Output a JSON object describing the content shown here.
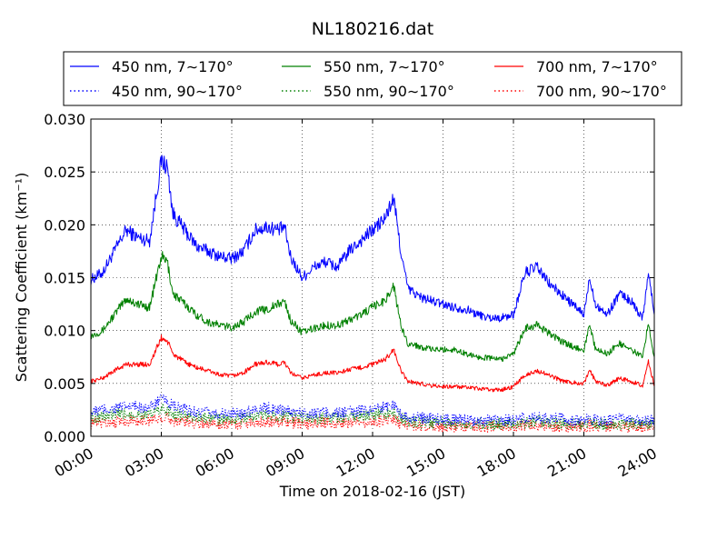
{
  "chart_data": {
    "type": "line",
    "title": "NL180216.dat",
    "xlabel": "Time on 2018-02-16 (JST)",
    "ylabel": "Scattering Coefficient (km⁻¹)",
    "xlim": [
      0,
      24
    ],
    "ylim": [
      0,
      0.03
    ],
    "x_ticks": [
      0,
      3,
      6,
      9,
      12,
      15,
      18,
      21,
      24
    ],
    "x_tick_labels": [
      "00:00",
      "03:00",
      "06:00",
      "09:00",
      "12:00",
      "15:00",
      "18:00",
      "21:00",
      "24:00"
    ],
    "y_ticks": [
      0,
      0.005,
      0.01,
      0.015,
      0.02,
      0.025,
      0.03
    ],
    "y_tick_labels": [
      "0.000",
      "0.005",
      "0.010",
      "0.015",
      "0.020",
      "0.025",
      "0.030"
    ],
    "grid": true,
    "legend_position": "top",
    "x": [
      0,
      0.5,
      1,
      1.5,
      2,
      2.5,
      3,
      3.25,
      3.5,
      4,
      4.5,
      5,
      5.5,
      6,
      6.5,
      7,
      7.5,
      8,
      8.25,
      8.5,
      9,
      9.5,
      10,
      10.5,
      11,
      11.5,
      12,
      12.5,
      12.9,
      13.2,
      13.5,
      14,
      14.5,
      15,
      15.5,
      16,
      16.5,
      17,
      17.5,
      18,
      18.5,
      19,
      19.5,
      20,
      20.5,
      21,
      21.25,
      21.5,
      22,
      22.5,
      23,
      23.5,
      23.75,
      24
    ],
    "series": [
      {
        "name": "450 nm, 7∼170°",
        "color": "#0000ff",
        "style": "solid",
        "values": [
          0.0148,
          0.0155,
          0.0175,
          0.0195,
          0.0188,
          0.0185,
          0.026,
          0.0255,
          0.021,
          0.0195,
          0.018,
          0.0175,
          0.017,
          0.0168,
          0.0175,
          0.0195,
          0.0198,
          0.0195,
          0.0198,
          0.017,
          0.015,
          0.016,
          0.0165,
          0.016,
          0.0175,
          0.0185,
          0.0195,
          0.0205,
          0.0225,
          0.0175,
          0.014,
          0.0132,
          0.0128,
          0.0125,
          0.0122,
          0.012,
          0.0115,
          0.0112,
          0.0112,
          0.0115,
          0.0155,
          0.016,
          0.0145,
          0.0135,
          0.0125,
          0.0115,
          0.015,
          0.0125,
          0.0115,
          0.0135,
          0.0128,
          0.0112,
          0.0155,
          0.0115
        ]
      },
      {
        "name": "550 nm, 7∼170°",
        "color": "#008000",
        "style": "solid",
        "values": [
          0.0095,
          0.01,
          0.0115,
          0.013,
          0.0125,
          0.0122,
          0.017,
          0.0165,
          0.0135,
          0.0125,
          0.0115,
          0.0108,
          0.0105,
          0.0103,
          0.0108,
          0.0118,
          0.012,
          0.0125,
          0.0128,
          0.011,
          0.0098,
          0.0102,
          0.0105,
          0.0105,
          0.011,
          0.0115,
          0.0122,
          0.0128,
          0.0142,
          0.0105,
          0.0088,
          0.0085,
          0.0082,
          0.0082,
          0.0082,
          0.0078,
          0.0075,
          0.0074,
          0.0073,
          0.0078,
          0.0102,
          0.0105,
          0.0098,
          0.009,
          0.0085,
          0.0082,
          0.0105,
          0.0082,
          0.0078,
          0.0088,
          0.0082,
          0.0075,
          0.0108,
          0.0075
        ]
      },
      {
        "name": "700 nm, 7∼170°",
        "color": "#ff0000",
        "style": "solid",
        "values": [
          0.0052,
          0.0055,
          0.0062,
          0.0068,
          0.0068,
          0.0068,
          0.0093,
          0.009,
          0.0078,
          0.007,
          0.0065,
          0.0062,
          0.0058,
          0.0057,
          0.006,
          0.0068,
          0.007,
          0.0068,
          0.007,
          0.006,
          0.0055,
          0.0058,
          0.006,
          0.006,
          0.0063,
          0.0065,
          0.0068,
          0.0072,
          0.0082,
          0.0062,
          0.0052,
          0.005,
          0.0048,
          0.0047,
          0.0047,
          0.0046,
          0.0045,
          0.0044,
          0.0044,
          0.0047,
          0.0058,
          0.0062,
          0.0058,
          0.0053,
          0.0051,
          0.005,
          0.0062,
          0.0052,
          0.0048,
          0.0055,
          0.0052,
          0.0048,
          0.007,
          0.0048
        ]
      },
      {
        "name": "450 nm, 90∼170°",
        "color": "#0000ff",
        "style": "dotted",
        "values": [
          0.0022,
          0.0025,
          0.0026,
          0.0028,
          0.0028,
          0.0027,
          0.0035,
          0.0033,
          0.0028,
          0.0025,
          0.0023,
          0.0022,
          0.0021,
          0.0021,
          0.0022,
          0.0026,
          0.0027,
          0.0025,
          0.0025,
          0.0023,
          0.0022,
          0.0022,
          0.0023,
          0.0022,
          0.0023,
          0.0024,
          0.0026,
          0.0028,
          0.003,
          0.0022,
          0.0018,
          0.0017,
          0.0017,
          0.0016,
          0.0016,
          0.0016,
          0.0015,
          0.0015,
          0.0015,
          0.0015,
          0.0017,
          0.0018,
          0.0017,
          0.0016,
          0.0015,
          0.0015,
          0.0016,
          0.0015,
          0.0015,
          0.0016,
          0.0016,
          0.0015,
          0.0015,
          0.0014
        ]
      },
      {
        "name": "550 nm, 90∼170°",
        "color": "#008000",
        "style": "dotted",
        "values": [
          0.0017,
          0.0019,
          0.002,
          0.0021,
          0.0021,
          0.002,
          0.0026,
          0.0025,
          0.0021,
          0.0019,
          0.0018,
          0.0017,
          0.0016,
          0.0016,
          0.0017,
          0.0019,
          0.002,
          0.0019,
          0.0019,
          0.0018,
          0.0017,
          0.0017,
          0.0017,
          0.0017,
          0.0018,
          0.0019,
          0.002,
          0.0021,
          0.0023,
          0.0017,
          0.0014,
          0.0013,
          0.0013,
          0.0013,
          0.0012,
          0.0012,
          0.0012,
          0.0012,
          0.0012,
          0.0012,
          0.0013,
          0.0014,
          0.0013,
          0.0012,
          0.0012,
          0.0012,
          0.0013,
          0.0012,
          0.0012,
          0.0012,
          0.0012,
          0.0012,
          0.0012,
          0.0011
        ]
      },
      {
        "name": "700 nm, 90∼170°",
        "color": "#ff0000",
        "style": "dotted",
        "values": [
          0.0012,
          0.0013,
          0.0014,
          0.0015,
          0.0015,
          0.0015,
          0.0018,
          0.0018,
          0.0015,
          0.0014,
          0.0013,
          0.0012,
          0.0012,
          0.0012,
          0.0012,
          0.0014,
          0.0014,
          0.0014,
          0.0014,
          0.0013,
          0.0012,
          0.0012,
          0.0013,
          0.0012,
          0.0013,
          0.0013,
          0.0014,
          0.0015,
          0.0016,
          0.0012,
          0.001,
          0.001,
          0.001,
          0.0009,
          0.0009,
          0.0009,
          0.0009,
          0.0009,
          0.0009,
          0.0009,
          0.001,
          0.001,
          0.001,
          0.0009,
          0.0009,
          0.0009,
          0.001,
          0.0009,
          0.0009,
          0.0009,
          0.0009,
          0.0009,
          0.0009,
          0.0008
        ]
      }
    ]
  }
}
